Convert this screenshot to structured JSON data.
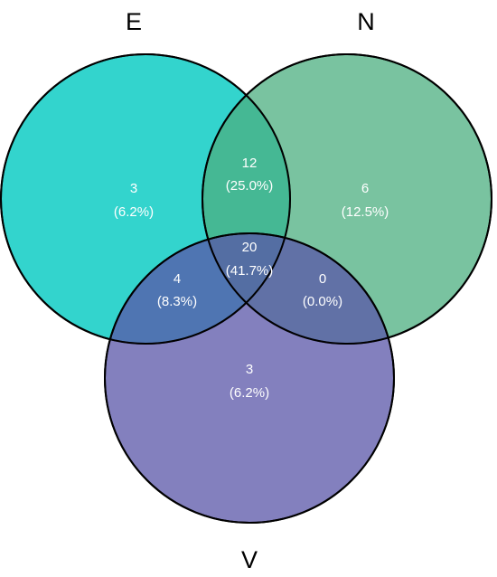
{
  "sets": [
    {
      "id": "E",
      "label": "E",
      "color": "#00c9c0"
    },
    {
      "id": "N",
      "label": "N",
      "color": "#4caf80"
    },
    {
      "id": "V",
      "label": "V",
      "color": "#5a55a8"
    }
  ],
  "regions": {
    "e_only": {
      "count": "3",
      "percent": "(6.2%)"
    },
    "n_only": {
      "count": "6",
      "percent": "(12.5%)"
    },
    "v_only": {
      "count": "3",
      "percent": "(6.2%)"
    },
    "en": {
      "count": "12",
      "percent": "(25.0%)"
    },
    "ev": {
      "count": "4",
      "percent": "(8.3%)"
    },
    "nv": {
      "count": "0",
      "percent": "(0.0%)"
    },
    "env": {
      "count": "20",
      "percent": "(41.7%)"
    }
  },
  "colors": {
    "circle_fill_opacity": 0.8,
    "outline": "#000000",
    "region_text": "#ffffff",
    "label_text": "#000000"
  }
}
